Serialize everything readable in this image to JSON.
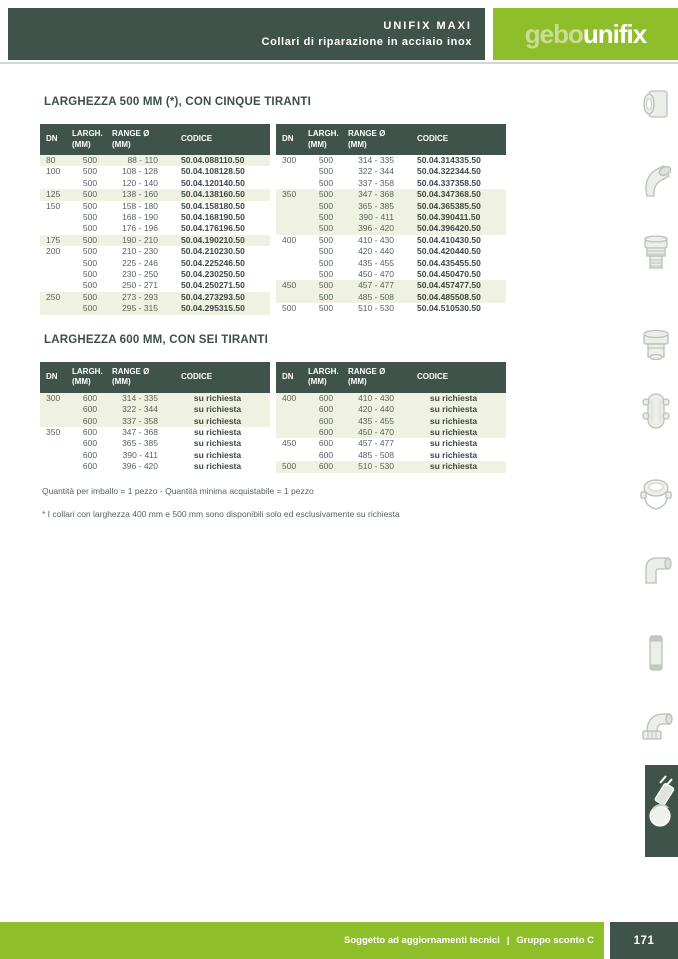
{
  "header": {
    "title_line1": "UNIFIX MAXI",
    "title_line2": "Collari di riparazione in acciaio inox",
    "logo_part1": "gebo",
    "logo_part2": "unifix"
  },
  "sections": [
    {
      "title": "LARGHEZZA 500 MM (*), CON CINQUE TIRANTI",
      "columns": [
        "DN",
        "LARGH.\n(MM)",
        "RANGE Ø\n(MM)",
        "CODICE"
      ],
      "tables": [
        {
          "rows": [
            {
              "dn": "80",
              "largh": "500",
              "range": "88 - 110",
              "codice": "50.04.088110.50",
              "shaded": true
            },
            {
              "dn": "100",
              "largh": "500",
              "range": "108 - 128",
              "codice": "50.04.108128.50",
              "shaded": false
            },
            {
              "dn": "",
              "largh": "500",
              "range": "120 - 140",
              "codice": "50.04.120140.50",
              "shaded": false
            },
            {
              "dn": "125",
              "largh": "500",
              "range": "138 - 160",
              "codice": "50.04.138160.50",
              "shaded": true
            },
            {
              "dn": "150",
              "largh": "500",
              "range": "158 - 180",
              "codice": "50.04.158180.50",
              "shaded": false
            },
            {
              "dn": "",
              "largh": "500",
              "range": "168 - 190",
              "codice": "50.04.168190.50",
              "shaded": false
            },
            {
              "dn": "",
              "largh": "500",
              "range": "176 - 196",
              "codice": "50.04.176196.50",
              "shaded": false
            },
            {
              "dn": "175",
              "largh": "500",
              "range": "190 - 210",
              "codice": "50.04.190210.50",
              "shaded": true
            },
            {
              "dn": "200",
              "largh": "500",
              "range": "210 - 230",
              "codice": "50.04.210230.50",
              "shaded": false
            },
            {
              "dn": "",
              "largh": "500",
              "range": "225 - 246",
              "codice": "50.04.225246.50",
              "shaded": false
            },
            {
              "dn": "",
              "largh": "500",
              "range": "230 - 250",
              "codice": "50.04.230250.50",
              "shaded": false
            },
            {
              "dn": "",
              "largh": "500",
              "range": "250 - 271",
              "codice": "50.04.250271.50",
              "shaded": false
            },
            {
              "dn": "250",
              "largh": "500",
              "range": "273 - 293",
              "codice": "50.04.273293.50",
              "shaded": true
            },
            {
              "dn": "",
              "largh": "500",
              "range": "295 - 315",
              "codice": "50.04.295315.50",
              "shaded": true
            }
          ]
        },
        {
          "rows": [
            {
              "dn": "300",
              "largh": "500",
              "range": "314 - 335",
              "codice": "50.04.314335.50",
              "shaded": false
            },
            {
              "dn": "",
              "largh": "500",
              "range": "322 - 344",
              "codice": "50.04.322344.50",
              "shaded": false
            },
            {
              "dn": "",
              "largh": "500",
              "range": "337 - 358",
              "codice": "50.04.337358.50",
              "shaded": false
            },
            {
              "dn": "350",
              "largh": "500",
              "range": "347 - 368",
              "codice": "50.04.347368.50",
              "shaded": true
            },
            {
              "dn": "",
              "largh": "500",
              "range": "365 - 385",
              "codice": "50.04.365385.50",
              "shaded": true
            },
            {
              "dn": "",
              "largh": "500",
              "range": "390 - 411",
              "codice": "50.04.390411.50",
              "shaded": true
            },
            {
              "dn": "",
              "largh": "500",
              "range": "396 - 420",
              "codice": "50.04.396420.50",
              "shaded": true
            },
            {
              "dn": "400",
              "largh": "500",
              "range": "410 - 430",
              "codice": "50.04.410430.50",
              "shaded": false
            },
            {
              "dn": "",
              "largh": "500",
              "range": "420 - 440",
              "codice": "50.04.420440.50",
              "shaded": false
            },
            {
              "dn": "",
              "largh": "500",
              "range": "435 - 455",
              "codice": "50.04.435455.50",
              "shaded": false
            },
            {
              "dn": "",
              "largh": "500",
              "range": "450 - 470",
              "codice": "50.04.450470.50",
              "shaded": false
            },
            {
              "dn": "450",
              "largh": "500",
              "range": "457 - 477",
              "codice": "50.04.457477.50",
              "shaded": true
            },
            {
              "dn": "",
              "largh": "500",
              "range": "485 - 508",
              "codice": "50.04.485508.50",
              "shaded": true
            },
            {
              "dn": "500",
              "largh": "500",
              "range": "510 - 530",
              "codice": "50.04.510530.50",
              "shaded": false
            }
          ]
        }
      ]
    },
    {
      "title": "LARGHEZZA 600 MM, CON SEI TIRANTI",
      "columns": [
        "DN",
        "LARGH.\n(MM)",
        "RANGE Ø\n(MM)",
        "CODICE"
      ],
      "tables": [
        {
          "rows": [
            {
              "dn": "300",
              "largh": "600",
              "range": "314 - 335",
              "codice": "su richiesta",
              "shaded": true
            },
            {
              "dn": "",
              "largh": "600",
              "range": "322 - 344",
              "codice": "su richiesta",
              "shaded": true
            },
            {
              "dn": "",
              "largh": "600",
              "range": "337 - 358",
              "codice": "su richiesta",
              "shaded": true
            },
            {
              "dn": "350",
              "largh": "600",
              "range": "347 - 368",
              "codice": "su richiesta",
              "shaded": false
            },
            {
              "dn": "",
              "largh": "600",
              "range": "365 - 385",
              "codice": "su richiesta",
              "shaded": false
            },
            {
              "dn": "",
              "largh": "600",
              "range": "390 - 411",
              "codice": "su richiesta",
              "shaded": false
            },
            {
              "dn": "",
              "largh": "600",
              "range": "396 - 420",
              "codice": "su richiesta",
              "shaded": false
            }
          ]
        },
        {
          "rows": [
            {
              "dn": "400",
              "largh": "600",
              "range": "410 - 430",
              "codice": "su richiesta",
              "shaded": true
            },
            {
              "dn": "",
              "largh": "600",
              "range": "420 - 440",
              "codice": "su richiesta",
              "shaded": true
            },
            {
              "dn": "",
              "largh": "600",
              "range": "435 - 455",
              "codice": "su richiesta",
              "shaded": true
            },
            {
              "dn": "",
              "largh": "600",
              "range": "450 - 470",
              "codice": "su richiesta",
              "shaded": true
            },
            {
              "dn": "450",
              "largh": "600",
              "range": "457 - 477",
              "codice": "su richiesta",
              "shaded": false
            },
            {
              "dn": "",
              "largh": "600",
              "range": "485 - 508",
              "codice": "su richiesta",
              "shaded": false
            },
            {
              "dn": "500",
              "largh": "600",
              "range": "510 - 530",
              "codice": "su richiesta",
              "shaded": true
            }
          ]
        }
      ]
    }
  ],
  "notes": [
    "Quantità per imballo = 1 pezzo - Quantità minima acquistabile = 1 pezzo",
    "* I collari con larghezza 400 mm e 500 mm sono disponibili solo ed esclusivamente su richiesta"
  ],
  "footer": {
    "disclaimer": "Soggetto ad aggiornamenti tecnici",
    "separator": "|",
    "discount_group": "Gruppo sconto C",
    "page_number": "171"
  },
  "sidebar": {
    "icons": [
      "tee-fitting-icon",
      "elbow-45-icon",
      "threaded-union-icon",
      "cap-fitting-icon",
      "repair-clamp-icon",
      "clamp-coupling-icon",
      "elbow-coupling-icon",
      "straight-sleeve-icon",
      "elbow-union-icon"
    ],
    "active_icon": "repair-collar-icon"
  },
  "colors": {
    "dark_green": "#3F534B",
    "brand_green": "#8FBE2B",
    "logo_light_green": "#C9DC96",
    "row_shade": "#EFF2E1"
  }
}
